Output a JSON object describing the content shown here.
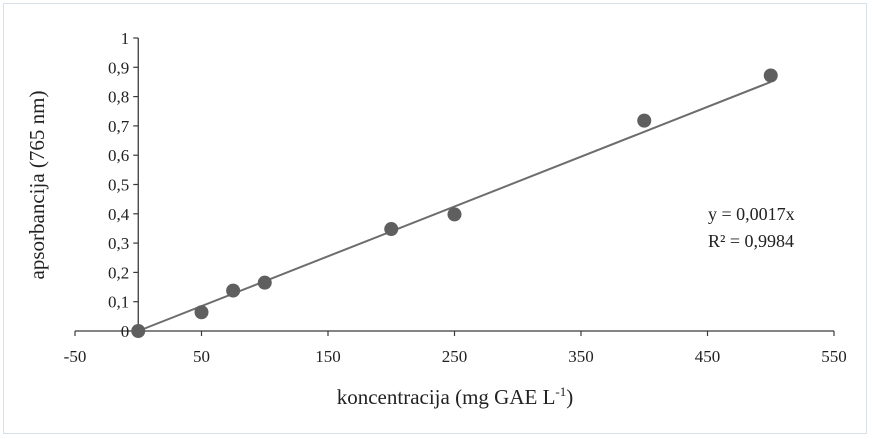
{
  "chart_data": {
    "type": "scatter",
    "xlabel": "koncentracija (mg GAE L",
    "xlabel_superscript": "-1",
    "xlabel_suffix": ")",
    "ylabel": "apsorbancija (765 nm)",
    "xlim": [
      -50,
      550
    ],
    "ylim": [
      0,
      1
    ],
    "x_ticks": [
      "-50",
      "50",
      "150",
      "250",
      "350",
      "450",
      "550"
    ],
    "x_tick_values": [
      -50,
      50,
      150,
      250,
      350,
      450,
      550
    ],
    "y_ticks": [
      "0",
      "0,1",
      "0,2",
      "0,3",
      "0,4",
      "0,5",
      "0,6",
      "0,7",
      "0,8",
      "0,9",
      "1"
    ],
    "y_tick_values": [
      0,
      0.1,
      0.2,
      0.3,
      0.4,
      0.5,
      0.6,
      0.7,
      0.8,
      0.9,
      1.0
    ],
    "points": [
      {
        "x": 0,
        "y": 0.0
      },
      {
        "x": 50,
        "y": 0.064
      },
      {
        "x": 75,
        "y": 0.138
      },
      {
        "x": 100,
        "y": 0.165
      },
      {
        "x": 200,
        "y": 0.348
      },
      {
        "x": 250,
        "y": 0.398
      },
      {
        "x": 400,
        "y": 0.718
      },
      {
        "x": 500,
        "y": 0.872
      }
    ],
    "trendline": {
      "slope": 0.0017,
      "intercept": 0,
      "x_range": [
        0,
        500
      ]
    },
    "equation": "y = 0,0017x",
    "r_squared": "R² = 0,9984",
    "grid": false,
    "legend": "none",
    "colors": {
      "marker": "#5f5f5f",
      "trendline": "#6d6d6d",
      "axis": "#3a3a3a"
    }
  }
}
